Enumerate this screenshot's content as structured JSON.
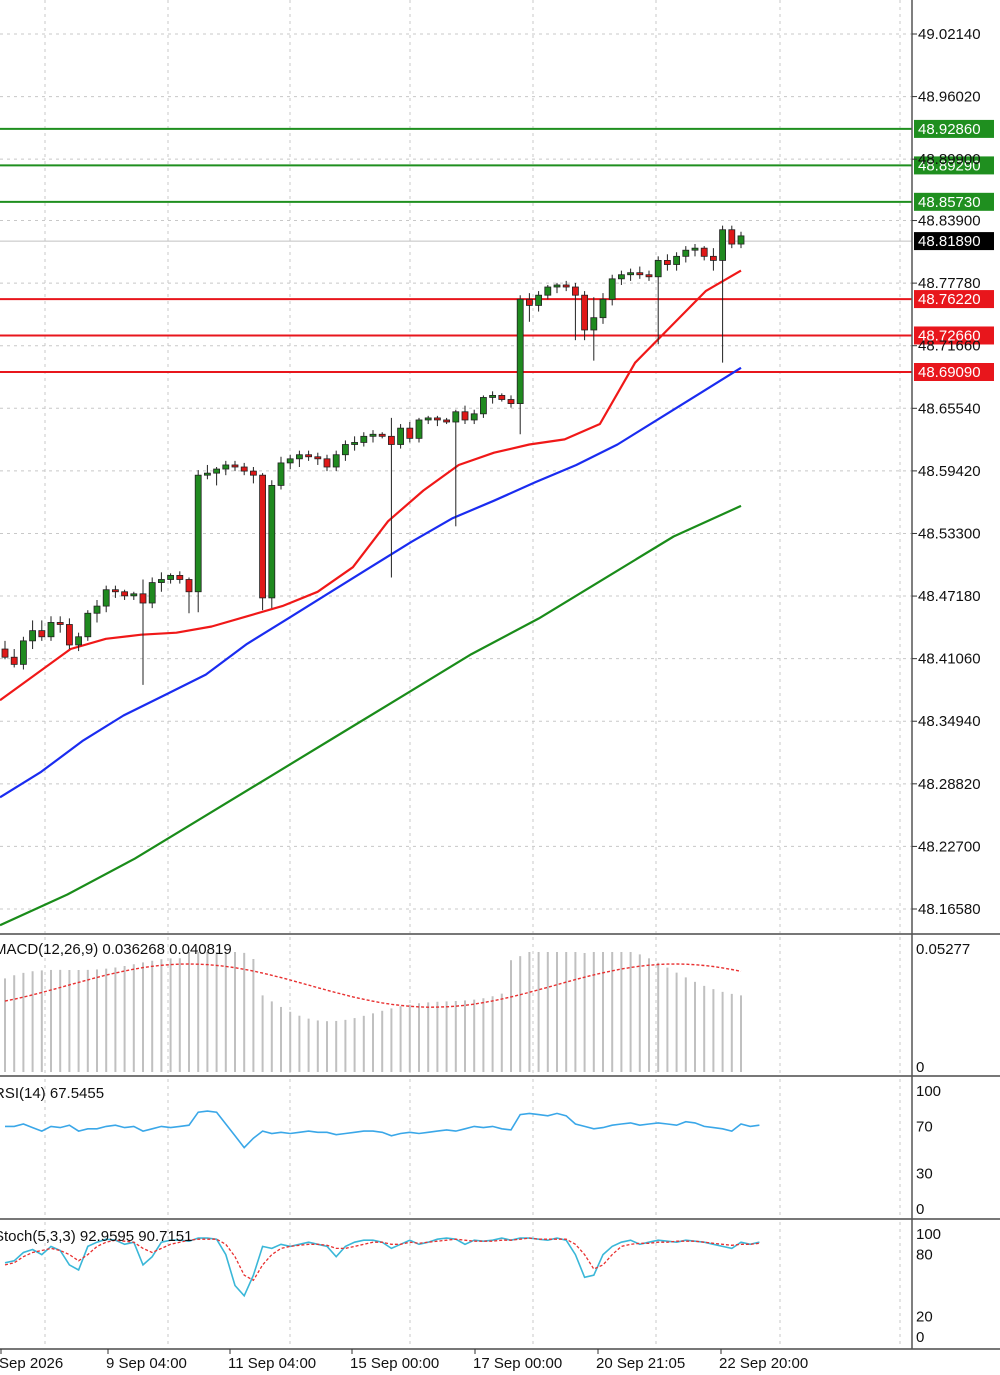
{
  "chart_data": {
    "type": "candlestick",
    "price_axis": {
      "ticks": [
        "49.02140",
        "48.96020",
        "48.89900",
        "48.83900",
        "48.77780",
        "48.71660",
        "48.65540",
        "48.59420",
        "48.53300",
        "48.47180",
        "48.41060",
        "48.34940",
        "48.28820",
        "48.22700",
        "48.16580"
      ],
      "current_price": "48.81890"
    },
    "resistance_levels": [
      {
        "value": 48.9286,
        "label": "48.92860",
        "color": "#1f8f1f"
      },
      {
        "value": 48.8929,
        "label": "48.89290",
        "color": "#1f8f1f"
      },
      {
        "value": 48.8573,
        "label": "48.85730",
        "color": "#1f8f1f"
      }
    ],
    "support_levels": [
      {
        "value": 48.7622,
        "label": "48.76220",
        "color": "#e8161c"
      },
      {
        "value": 48.7266,
        "label": "48.72660",
        "color": "#e8161c"
      },
      {
        "value": 48.6909,
        "label": "48.69090",
        "color": "#e8161c"
      }
    ],
    "x_labels": [
      "Sep 2026",
      "9 Sep 04:00",
      "11 Sep 04:00",
      "15 Sep 00:00",
      "17 Sep 00:00",
      "20 Sep 21:05",
      "22 Sep 20:00"
    ],
    "candles": [
      [
        48.42,
        48.428,
        48.41,
        48.412
      ],
      [
        48.412,
        48.42,
        48.402,
        48.405
      ],
      [
        48.405,
        48.432,
        48.4,
        48.428
      ],
      [
        48.428,
        48.448,
        48.42,
        48.438
      ],
      [
        48.438,
        48.448,
        48.428,
        48.432
      ],
      [
        48.432,
        48.452,
        48.428,
        48.446
      ],
      [
        48.446,
        48.452,
        48.436,
        48.444
      ],
      [
        48.444,
        48.45,
        48.42,
        48.424
      ],
      [
        48.424,
        48.436,
        48.418,
        48.432
      ],
      [
        48.432,
        48.458,
        48.428,
        48.455
      ],
      [
        48.455,
        48.468,
        48.446,
        48.462
      ],
      [
        48.462,
        48.482,
        48.456,
        48.478
      ],
      [
        48.478,
        48.482,
        48.47,
        48.476
      ],
      [
        48.476,
        48.478,
        48.468,
        48.472
      ],
      [
        48.472,
        48.476,
        48.468,
        48.474
      ],
      [
        48.474,
        48.488,
        48.385,
        48.465
      ],
      [
        48.465,
        48.49,
        48.46,
        48.485
      ],
      [
        48.485,
        48.495,
        48.476,
        48.488
      ],
      [
        48.488,
        48.494,
        48.484,
        48.492
      ],
      [
        48.492,
        48.496,
        48.484,
        48.488
      ],
      [
        48.488,
        48.49,
        48.455,
        48.476
      ],
      [
        48.476,
        48.595,
        48.456,
        48.59
      ],
      [
        48.59,
        48.6,
        48.586,
        48.592
      ],
      [
        48.592,
        48.598,
        48.58,
        48.596
      ],
      [
        48.596,
        48.604,
        48.59,
        48.6
      ],
      [
        48.6,
        48.604,
        48.594,
        48.598
      ],
      [
        48.598,
        48.602,
        48.59,
        48.594
      ],
      [
        48.594,
        48.598,
        48.582,
        48.59
      ],
      [
        48.59,
        48.592,
        48.458,
        48.47
      ],
      [
        48.47,
        48.585,
        48.46,
        48.58
      ],
      [
        48.58,
        48.608,
        48.576,
        48.602
      ],
      [
        48.602,
        48.61,
        48.596,
        48.606
      ],
      [
        48.606,
        48.614,
        48.598,
        48.61
      ],
      [
        48.61,
        48.614,
        48.604,
        48.608
      ],
      [
        48.608,
        48.612,
        48.6,
        48.606
      ],
      [
        48.606,
        48.61,
        48.594,
        48.598
      ],
      [
        48.598,
        48.614,
        48.594,
        48.61
      ],
      [
        48.61,
        48.624,
        48.604,
        48.62
      ],
      [
        48.62,
        48.628,
        48.614,
        48.622
      ],
      [
        48.622,
        48.632,
        48.618,
        48.628
      ],
      [
        48.628,
        48.634,
        48.622,
        48.63
      ],
      [
        48.63,
        48.632,
        48.626,
        48.628
      ],
      [
        48.628,
        48.646,
        48.49,
        48.62
      ],
      [
        48.62,
        48.64,
        48.616,
        48.636
      ],
      [
        48.636,
        48.642,
        48.622,
        48.626
      ],
      [
        48.626,
        48.646,
        48.622,
        48.644
      ],
      [
        48.644,
        48.648,
        48.64,
        48.646
      ],
      [
        48.646,
        48.648,
        48.638,
        48.644
      ],
      [
        48.644,
        48.646,
        48.64,
        48.642
      ],
      [
        48.642,
        48.654,
        48.54,
        48.652
      ],
      [
        48.652,
        48.658,
        48.64,
        48.644
      ],
      [
        48.644,
        48.654,
        48.64,
        48.65
      ],
      [
        48.65,
        48.668,
        48.646,
        48.666
      ],
      [
        48.666,
        48.672,
        48.66,
        48.668
      ],
      [
        48.668,
        48.67,
        48.662,
        48.664
      ],
      [
        48.664,
        48.668,
        48.656,
        48.66
      ],
      [
        48.66,
        48.766,
        48.63,
        48.762
      ],
      [
        48.762,
        48.768,
        48.74,
        48.756
      ],
      [
        48.756,
        48.77,
        48.75,
        48.766
      ],
      [
        48.766,
        48.776,
        48.762,
        48.774
      ],
      [
        48.774,
        48.778,
        48.768,
        48.776
      ],
      [
        48.776,
        48.78,
        48.77,
        48.774
      ],
      [
        48.774,
        48.778,
        48.722,
        48.766
      ],
      [
        48.766,
        48.77,
        48.722,
        48.732
      ],
      [
        48.732,
        48.764,
        48.702,
        48.744
      ],
      [
        48.744,
        48.768,
        48.738,
        48.762
      ],
      [
        48.762,
        48.786,
        48.756,
        48.782
      ],
      [
        48.782,
        48.79,
        48.776,
        48.786
      ],
      [
        48.786,
        48.792,
        48.78,
        48.788
      ],
      [
        48.788,
        48.794,
        48.782,
        48.786
      ],
      [
        48.786,
        48.79,
        48.78,
        48.784
      ],
      [
        48.784,
        48.804,
        48.718,
        48.8
      ],
      [
        48.8,
        48.806,
        48.79,
        48.796
      ],
      [
        48.796,
        48.808,
        48.79,
        48.804
      ],
      [
        48.804,
        48.814,
        48.798,
        48.81
      ],
      [
        48.81,
        48.816,
        48.804,
        48.812
      ],
      [
        48.812,
        48.814,
        48.8,
        48.804
      ],
      [
        48.804,
        48.812,
        48.79,
        48.8
      ],
      [
        48.8,
        48.834,
        48.7,
        48.83
      ],
      [
        48.83,
        48.834,
        48.812,
        48.816
      ],
      [
        48.816,
        48.828,
        48.812,
        48.824
      ]
    ],
    "ma_fast": {
      "color": "#f01818",
      "values": [
        48.37,
        48.395,
        48.42,
        48.43,
        48.434,
        48.436,
        48.442,
        48.452,
        48.462,
        48.476,
        48.5,
        48.545,
        48.575,
        48.6,
        48.612,
        48.62,
        48.625,
        48.64,
        48.7,
        48.735,
        48.77,
        48.79
      ]
    },
    "ma_mid": {
      "color": "#1a2cf0",
      "values": [
        48.275,
        48.3,
        48.33,
        48.355,
        48.375,
        48.395,
        48.425,
        48.45,
        48.475,
        48.5,
        48.525,
        48.548,
        48.565,
        48.583,
        48.6,
        48.62,
        48.645,
        48.67,
        48.695
      ]
    },
    "ma_slow": {
      "color": "#1a8c1a",
      "values": [
        48.15,
        48.18,
        48.215,
        48.255,
        48.295,
        48.335,
        48.375,
        48.415,
        48.45,
        48.49,
        48.53,
        48.56
      ]
    },
    "macd": {
      "label": "MACD(12,26,9) 0.036268 0.040819",
      "top_tick": "0.05277",
      "zero_tick": "0"
    },
    "rsi": {
      "label": "RSI(14) 67.5455",
      "ticks": [
        "100",
        "70",
        "30",
        "0"
      ],
      "values": [
        70,
        70,
        72,
        69,
        66,
        70,
        69,
        71,
        66,
        68,
        68,
        70,
        71,
        69,
        70,
        66,
        68,
        70,
        69,
        70,
        71,
        82,
        83,
        82,
        72,
        62,
        52,
        60,
        66,
        64,
        65,
        64,
        65,
        66,
        65,
        65,
        63,
        64,
        65,
        66,
        66,
        65,
        62,
        64,
        65,
        64,
        65,
        66,
        67,
        66,
        68,
        70,
        69,
        70,
        68,
        67,
        80,
        81,
        80,
        79,
        81,
        79,
        72,
        70,
        68,
        69,
        71,
        72,
        73,
        71,
        72,
        73,
        72,
        71,
        74,
        73,
        70,
        69,
        68,
        66,
        72,
        70,
        71
      ]
    },
    "stoch": {
      "label": "Stoch(5,3,3) 92.9595 90.7151",
      "ticks": [
        "100",
        "80",
        "20",
        "0"
      ],
      "k": [
        72,
        74,
        82,
        85,
        80,
        88,
        84,
        70,
        65,
        88,
        92,
        95,
        94,
        90,
        92,
        70,
        78,
        92,
        94,
        94,
        93,
        96,
        96,
        95,
        80,
        50,
        40,
        60,
        88,
        86,
        90,
        88,
        90,
        92,
        90,
        88,
        78,
        88,
        92,
        94,
        94,
        92,
        86,
        90,
        94,
        90,
        92,
        95,
        96,
        95,
        90,
        94,
        93,
        94,
        96,
        94,
        96,
        96,
        95,
        94,
        96,
        94,
        80,
        58,
        60,
        80,
        88,
        92,
        94,
        90,
        92,
        94,
        93,
        92,
        94,
        93,
        92,
        90,
        88,
        86,
        92,
        90,
        92
      ],
      "d": [
        70,
        72,
        78,
        82,
        84,
        86,
        84,
        80,
        74,
        80,
        88,
        92,
        94,
        93,
        92,
        86,
        82,
        86,
        90,
        92,
        94,
        95,
        95,
        95,
        90,
        78,
        60,
        55,
        70,
        80,
        86,
        88,
        89,
        90,
        90,
        89,
        86,
        86,
        88,
        90,
        92,
        92,
        90,
        90,
        92,
        91,
        92,
        93,
        94,
        95,
        94,
        93,
        93,
        93,
        94,
        94,
        95,
        96,
        95,
        95,
        95,
        95,
        90,
        80,
        66,
        70,
        80,
        88,
        90,
        91,
        91,
        92,
        92,
        93,
        93,
        93,
        92,
        91,
        90,
        89,
        90,
        90,
        91
      ]
    }
  }
}
